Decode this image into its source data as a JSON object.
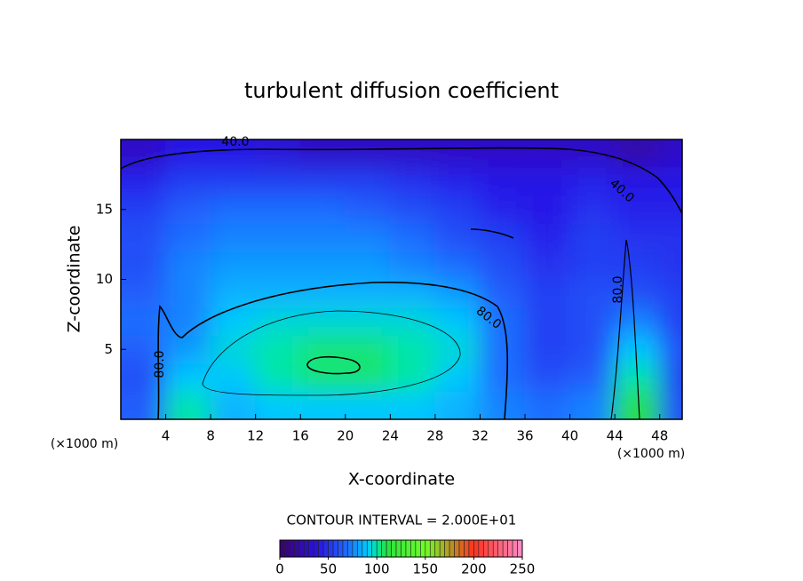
{
  "chart_data": {
    "type": "contour",
    "title": "turbulent diffusion coefficient",
    "x_label": "X-coordinate",
    "y_label": "Z-coordinate",
    "x_unit": "(×1000 m)",
    "y_unit": "(×1000 m)",
    "x": [
      2,
      6,
      10,
      14,
      18,
      22,
      26,
      30,
      34,
      38,
      42,
      46,
      50
    ],
    "y": [
      1,
      3,
      5,
      7,
      9,
      11,
      13,
      15,
      17,
      19
    ],
    "z": [
      [
        65,
        100,
        85,
        90,
        90,
        90,
        90,
        85,
        75,
        70,
        75,
        110,
        60
      ],
      [
        60,
        90,
        90,
        100,
        105,
        105,
        100,
        90,
        70,
        60,
        65,
        100,
        55
      ],
      [
        65,
        80,
        95,
        100,
        105,
        105,
        100,
        95,
        70,
        55,
        60,
        90,
        60
      ],
      [
        70,
        75,
        90,
        95,
        95,
        95,
        95,
        90,
        70,
        55,
        60,
        75,
        55
      ],
      [
        65,
        75,
        85,
        85,
        85,
        85,
        85,
        80,
        65,
        55,
        60,
        60,
        55
      ],
      [
        60,
        75,
        80,
        80,
        80,
        80,
        75,
        70,
        60,
        50,
        55,
        55,
        50
      ],
      [
        60,
        70,
        75,
        75,
        75,
        75,
        70,
        60,
        55,
        45,
        55,
        50,
        50
      ],
      [
        55,
        65,
        70,
        70,
        70,
        65,
        60,
        55,
        45,
        40,
        50,
        45,
        45
      ],
      [
        45,
        55,
        55,
        55,
        55,
        55,
        50,
        45,
        40,
        40,
        45,
        40,
        40
      ],
      [
        30,
        40,
        40,
        35,
        30,
        30,
        30,
        30,
        30,
        30,
        30,
        20,
        30
      ]
    ],
    "xlim": [
      0,
      50
    ],
    "ylim": [
      0,
      20
    ],
    "xticks": [
      4,
      8,
      12,
      16,
      20,
      24,
      28,
      32,
      36,
      40,
      44,
      48
    ],
    "yticks": [
      5,
      10,
      15
    ],
    "contour_interval": "CONTOUR INTERVAL = 2.000E+01",
    "contour_labels": [
      {
        "value": 40,
        "label": "40.0"
      },
      {
        "value": 40,
        "label": "40.0"
      },
      {
        "value": 80,
        "label": "80.0"
      },
      {
        "value": 80,
        "label": "80.0"
      },
      {
        "value": 80,
        "label": "80.0"
      }
    ],
    "colorbar": {
      "lim": [
        0,
        250
      ],
      "ticks": [
        0,
        50,
        100,
        150,
        200,
        250
      ]
    }
  }
}
